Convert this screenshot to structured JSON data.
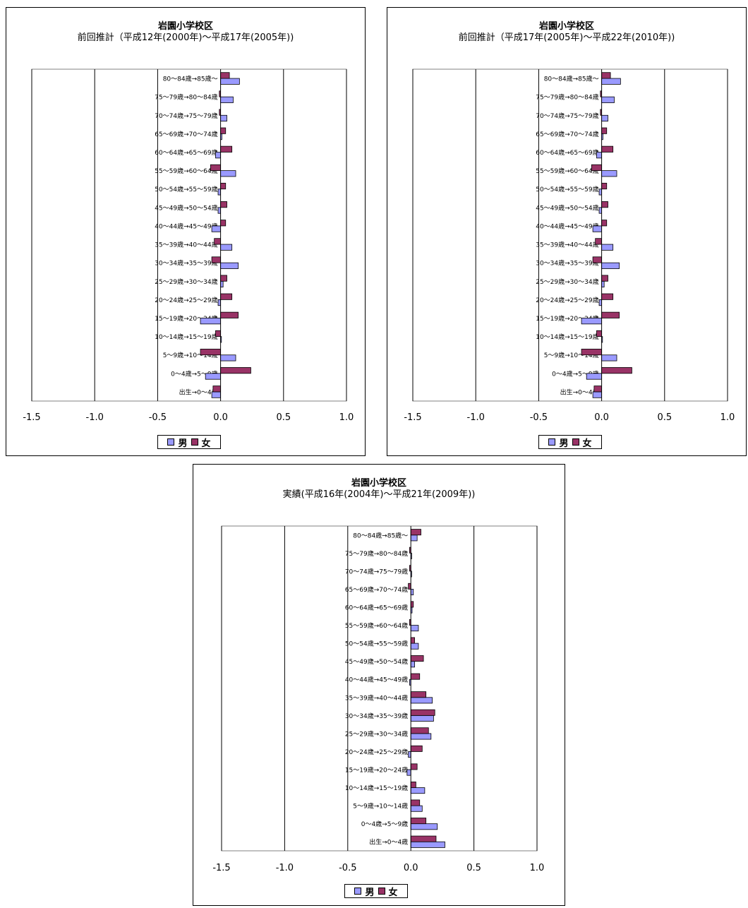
{
  "colors": {
    "male": "#9a9aff",
    "female": "#993366"
  },
  "age_labels": [
    "80～84歳→85歳～",
    "75～79歳→80～84歳",
    "70～74歳→75～79歳",
    "65～69歳→70～74歳",
    "60～64歳→65～69歳",
    "55～59歳→60～64歳",
    "50～54歳→55～59歳",
    "45～49歳→50～54歳",
    "40～44歳→45～49歳",
    "35～39歳→40～44歳",
    "30～34歳→35～39歳",
    "25～29歳→30～34歳",
    "20～24歳→25～29歳",
    "15～19歳→20～24歳",
    "10～14歳→15～19歳",
    "5～9歳→10～14歳",
    "0～4歳→5～9歳",
    "出生→0～4歳"
  ],
  "legend": {
    "male": "男",
    "female": "女"
  },
  "chart_data": [
    {
      "type": "bar",
      "orientation": "horizontal",
      "title": "岩園小学校区",
      "subtitle": "前回推計（平成12年(2000年)～平成17年(2005年))",
      "xlim": [
        -1.5,
        1.0
      ],
      "xticks": [
        "-1.5",
        "-1.0",
        "-0.5",
        "0.0",
        "0.5",
        "1.0"
      ],
      "gridlines": [
        -1.5,
        -1.0,
        -0.5,
        0.5,
        1.0
      ],
      "categories": [
        "80～84歳→85歳～",
        "75～79歳→80～84歳",
        "70～74歳→75～79歳",
        "65～69歳→70～74歳",
        "60～64歳→65～69歳",
        "55～59歳→60～64歳",
        "50～54歳→55～59歳",
        "45～49歳→50～54歳",
        "40～44歳→45～49歳",
        "35～39歳→40～44歳",
        "30～34歳→35～39歳",
        "25～29歳→30～34歳",
        "20～24歳→25～29歳",
        "15～19歳→20～24歳",
        "10～14歳→15～19歳",
        "5～9歳→10～14歳",
        "0～4歳→5～9歳",
        "出生→0～4歳"
      ],
      "series": [
        {
          "name": "男",
          "values": [
            0.15,
            0.1,
            0.05,
            0.01,
            -0.04,
            0.12,
            -0.02,
            -0.02,
            -0.07,
            0.09,
            0.14,
            0.02,
            -0.02,
            -0.16,
            0.0,
            0.12,
            -0.12,
            -0.07
          ]
        },
        {
          "name": "女",
          "values": [
            0.07,
            -0.01,
            -0.01,
            0.04,
            0.09,
            -0.08,
            0.04,
            0.05,
            0.04,
            -0.05,
            -0.07,
            0.05,
            0.09,
            0.14,
            -0.04,
            -0.16,
            0.24,
            -0.06
          ]
        }
      ],
      "legend_position": "bottom"
    },
    {
      "type": "bar",
      "orientation": "horizontal",
      "title": "岩園小学校区",
      "subtitle": "前回推計（平成17年(2005年)～平成22年(2010年))",
      "xlim": [
        -1.5,
        1.0
      ],
      "xticks": [
        "-1.5",
        "-1.0",
        "-0.5",
        "0.0",
        "0.5",
        "1.0"
      ],
      "gridlines": [
        -1.5,
        -1.0,
        -0.5,
        0.5,
        1.0
      ],
      "categories": [
        "80～84歳→85歳～",
        "75～79歳→80～84歳",
        "70～74歳→75～79歳",
        "65～69歳→70～74歳",
        "60～64歳→65～69歳",
        "55～59歳→60～64歳",
        "50～54歳→55～59歳",
        "45～49歳→50～54歳",
        "40～44歳→45～49歳",
        "35～39歳→40～44歳",
        "30～34歳→35～39歳",
        "25～29歳→30～34歳",
        "20～24歳→25～29歳",
        "15～19歳→20～24歳",
        "10～14歳→15～19歳",
        "5～9歳→10～14歳",
        "0～4歳→5～9歳",
        "出生→0～4歳"
      ],
      "series": [
        {
          "name": "男",
          "values": [
            0.15,
            0.1,
            0.05,
            0.01,
            -0.04,
            0.12,
            -0.02,
            -0.02,
            -0.07,
            0.09,
            0.14,
            0.02,
            -0.02,
            -0.16,
            0.0,
            0.12,
            -0.12,
            -0.07
          ]
        },
        {
          "name": "女",
          "values": [
            0.07,
            -0.01,
            -0.01,
            0.04,
            0.09,
            -0.08,
            0.04,
            0.05,
            0.04,
            -0.05,
            -0.07,
            0.05,
            0.09,
            0.14,
            -0.04,
            -0.16,
            0.24,
            -0.06
          ]
        }
      ],
      "legend_position": "bottom"
    },
    {
      "type": "bar",
      "orientation": "horizontal",
      "title": "岩園小学校区",
      "subtitle": "実績(平成16年(2004年)～平成21年(2009年))",
      "xlim": [
        -1.5,
        1.0
      ],
      "xticks": [
        "-1.5",
        "-1.0",
        "-0.5",
        "0.0",
        "0.5",
        "1.0"
      ],
      "gridlines": [
        -1.5,
        -1.0,
        -0.5,
        0.5,
        1.0
      ],
      "categories": [
        "80～84歳→85歳～",
        "75～79歳→80～84歳",
        "70～74歳→75～79歳",
        "65～69歳→70～74歳",
        "60～64歳→65～69歳",
        "55～59歳→60～64歳",
        "50～54歳→55～59歳",
        "45～49歳→50～54歳",
        "40～44歳→45～49歳",
        "35～39歳→40～44歳",
        "30～34歳→35～39歳",
        "25～29歳→30～34歳",
        "20～24歳→25～29歳",
        "15～19歳→20～24歳",
        "10～14歳→15～19歳",
        "5～9歳→10～14歳",
        "0～4歳→5～9歳",
        "出生→0～4歳"
      ],
      "series": [
        {
          "name": "男",
          "values": [
            0.05,
            0.0,
            0.0,
            0.02,
            0.01,
            0.06,
            0.06,
            0.03,
            -0.01,
            0.17,
            0.18,
            0.16,
            -0.02,
            -0.03,
            0.11,
            0.09,
            0.21,
            0.27
          ]
        },
        {
          "name": "女",
          "values": [
            0.08,
            -0.01,
            -0.01,
            -0.02,
            0.02,
            -0.01,
            0.03,
            0.1,
            0.07,
            0.12,
            0.19,
            0.14,
            0.09,
            0.05,
            0.04,
            0.07,
            0.12,
            0.2
          ]
        }
      ],
      "legend_position": "bottom"
    }
  ]
}
